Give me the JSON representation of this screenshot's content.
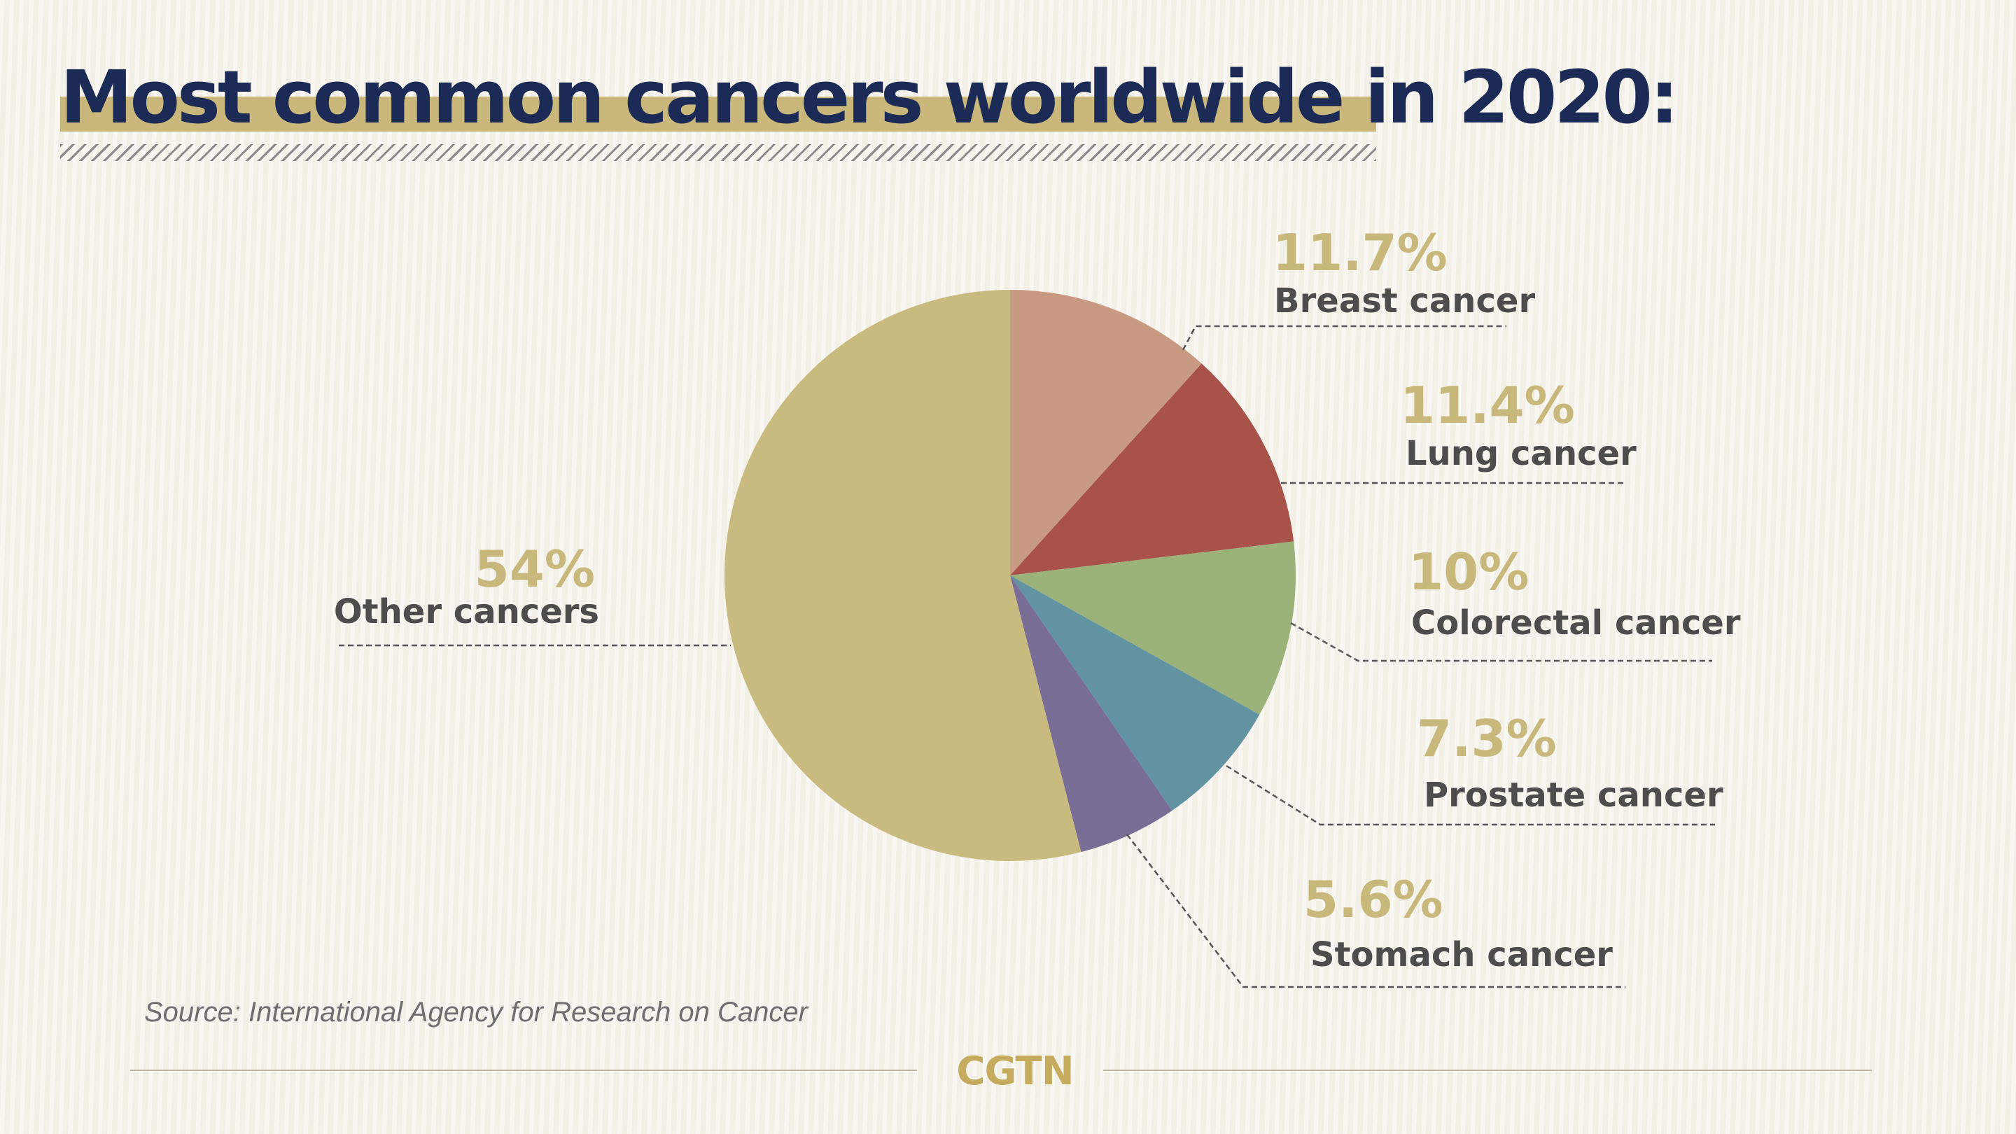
{
  "title": "Most common cancers worldwide in 2020:",
  "source": "Source: International Agency for Research on Cancer",
  "logo": "CGTN",
  "chart_data": {
    "type": "pie",
    "title": "Most common cancers worldwide in 2020:",
    "slices": [
      {
        "label": "Breast cancer",
        "value": 11.7,
        "display": "11.7%",
        "color": "#c99a82"
      },
      {
        "label": "Lung cancer",
        "value": 11.4,
        "display": "11.4%",
        "color": "#a9524a"
      },
      {
        "label": "Colorectal cancer",
        "value": 10,
        "display": "10%",
        "color": "#9bb27a"
      },
      {
        "label": "Prostate cancer",
        "value": 7.3,
        "display": "7.3%",
        "color": "#6293a1"
      },
      {
        "label": "Stomach cancer",
        "value": 5.6,
        "display": "5.6%",
        "color": "#786e96"
      },
      {
        "label": "Other cancers",
        "value": 54,
        "display": "54%",
        "color": "#c9bb80"
      }
    ]
  }
}
